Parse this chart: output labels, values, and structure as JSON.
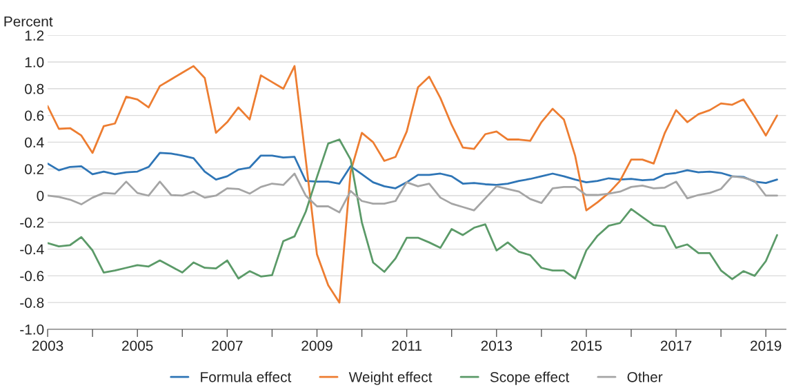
{
  "chart_data": {
    "type": "line",
    "ylabel": "Percent",
    "x": [
      2003,
      2003.25,
      2003.5,
      2003.75,
      2004,
      2004.25,
      2004.5,
      2004.75,
      2005,
      2005.25,
      2005.5,
      2005.75,
      2006,
      2006.25,
      2006.5,
      2006.75,
      2007,
      2007.25,
      2007.5,
      2007.75,
      2008,
      2008.25,
      2008.5,
      2008.75,
      2009,
      2009.25,
      2009.5,
      2009.75,
      2010,
      2010.25,
      2010.5,
      2010.75,
      2011,
      2011.25,
      2011.5,
      2011.75,
      2012,
      2012.25,
      2012.5,
      2012.75,
      2013,
      2013.25,
      2013.5,
      2013.75,
      2014,
      2014.25,
      2014.5,
      2014.75,
      2015,
      2015.25,
      2015.5,
      2015.75,
      2016,
      2016.25,
      2016.5,
      2016.75,
      2017,
      2017.25,
      2017.5,
      2017.75,
      2018,
      2018.25,
      2018.5,
      2018.75,
      2019,
      2019.25
    ],
    "series": [
      {
        "name": "Formula effect",
        "color": "#2e75b6",
        "values": [
          0.24,
          0.19,
          0.215,
          0.22,
          0.16,
          0.18,
          0.16,
          0.175,
          0.18,
          0.215,
          0.32,
          0.315,
          0.3,
          0.28,
          0.18,
          0.12,
          0.145,
          0.195,
          0.21,
          0.3,
          0.3,
          0.285,
          0.29,
          0.11,
          0.105,
          0.105,
          0.09,
          0.22,
          0.16,
          0.1,
          0.07,
          0.055,
          0.1,
          0.155,
          0.155,
          0.165,
          0.145,
          0.09,
          0.095,
          0.085,
          0.08,
          0.09,
          0.11,
          0.125,
          0.145,
          0.165,
          0.145,
          0.12,
          0.1,
          0.11,
          0.13,
          0.12,
          0.125,
          0.115,
          0.12,
          0.16,
          0.17,
          0.19,
          0.175,
          0.18,
          0.17,
          0.145,
          0.14,
          0.105,
          0.095,
          0.12
        ]
      },
      {
        "name": "Weight effect",
        "color": "#ed7d31",
        "values": [
          0.67,
          0.5,
          0.505,
          0.45,
          0.32,
          0.52,
          0.54,
          0.74,
          0.72,
          0.66,
          0.82,
          0.87,
          0.92,
          0.97,
          0.88,
          0.47,
          0.55,
          0.66,
          0.57,
          0.9,
          0.85,
          0.8,
          0.97,
          0.27,
          -0.44,
          -0.67,
          -0.8,
          0.18,
          0.47,
          0.4,
          0.26,
          0.29,
          0.48,
          0.81,
          0.89,
          0.73,
          0.53,
          0.36,
          0.35,
          0.46,
          0.48,
          0.42,
          0.42,
          0.41,
          0.55,
          0.65,
          0.57,
          0.3,
          -0.11,
          -0.05,
          0.02,
          0.11,
          0.27,
          0.27,
          0.24,
          0.47,
          0.64,
          0.55,
          0.61,
          0.64,
          0.69,
          0.68,
          0.72,
          0.59,
          0.45,
          0.6
        ]
      },
      {
        "name": "Scope effect",
        "color": "#5b9a68",
        "values": [
          -0.355,
          -0.38,
          -0.37,
          -0.31,
          -0.41,
          -0.575,
          -0.56,
          -0.54,
          -0.52,
          -0.53,
          -0.485,
          -0.53,
          -0.575,
          -0.5,
          -0.54,
          -0.545,
          -0.485,
          -0.62,
          -0.565,
          -0.605,
          -0.595,
          -0.34,
          -0.305,
          -0.12,
          0.14,
          0.39,
          0.42,
          0.27,
          -0.2,
          -0.5,
          -0.57,
          -0.47,
          -0.315,
          -0.315,
          -0.35,
          -0.39,
          -0.25,
          -0.295,
          -0.24,
          -0.215,
          -0.41,
          -0.35,
          -0.42,
          -0.445,
          -0.54,
          -0.56,
          -0.56,
          -0.62,
          -0.41,
          -0.3,
          -0.225,
          -0.205,
          -0.1,
          -0.16,
          -0.22,
          -0.23,
          -0.39,
          -0.365,
          -0.43,
          -0.43,
          -0.56,
          -0.625,
          -0.565,
          -0.6,
          -0.49,
          -0.295
        ]
      },
      {
        "name": "Other",
        "color": "#a5a5a5",
        "values": [
          0,
          -0.01,
          -0.03,
          -0.065,
          -0.015,
          0.02,
          0.015,
          0.105,
          0.02,
          0.0,
          0.105,
          0.005,
          0.0,
          0.03,
          -0.015,
          0.0,
          0.055,
          0.05,
          0.015,
          0.065,
          0.09,
          0.08,
          0.165,
          0.0,
          -0.08,
          -0.08,
          -0.125,
          0.035,
          -0.04,
          -0.06,
          -0.06,
          -0.04,
          0.1,
          0.07,
          0.09,
          -0.015,
          -0.06,
          -0.085,
          -0.11,
          -0.02,
          0.07,
          0.05,
          0.03,
          -0.025,
          -0.055,
          0.055,
          0.065,
          0.065,
          0.005,
          0.005,
          0.015,
          0.03,
          0.065,
          0.075,
          0.055,
          0.06,
          0.105,
          -0.02,
          0.005,
          0.02,
          0.05,
          0.145,
          0.135,
          0.11,
          0.0,
          0.0
        ]
      }
    ],
    "xlim": [
      2003,
      2019.45
    ],
    "xticks": [
      2003,
      {
        "value": 2004,
        "label": null
      },
      2005,
      {
        "value": 2006,
        "label": null
      },
      2007,
      {
        "value": 2008,
        "label": null
      },
      2009,
      {
        "value": 2010,
        "label": null
      },
      2011,
      {
        "value": 2012,
        "label": null
      },
      2013,
      {
        "value": 2014,
        "label": null
      },
      2015,
      {
        "value": 2016,
        "label": null
      },
      2017,
      {
        "value": 2018,
        "label": null
      },
      2019
    ],
    "ylim": [
      -1.0,
      1.2
    ],
    "yticks": [
      {
        "value": -1.0,
        "label": "-1.0"
      },
      {
        "value": -0.8,
        "label": "-0.8"
      },
      {
        "value": -0.6,
        "label": "-0.6"
      },
      {
        "value": -0.4,
        "label": "-0.4"
      },
      {
        "value": -0.2,
        "label": "-0.2"
      },
      0,
      {
        "value": 0.2,
        "label": "0.2"
      },
      {
        "value": 0.4,
        "label": "0.4"
      },
      {
        "value": 0.6,
        "label": "0.6"
      },
      {
        "value": 0.8,
        "label": "0.8"
      },
      {
        "value": 1.0,
        "label": "1.0"
      },
      {
        "value": 1.2,
        "label": "1.2"
      }
    ],
    "grid": "y",
    "legend": "bottom",
    "marker": "none",
    "line_style": "solid"
  }
}
